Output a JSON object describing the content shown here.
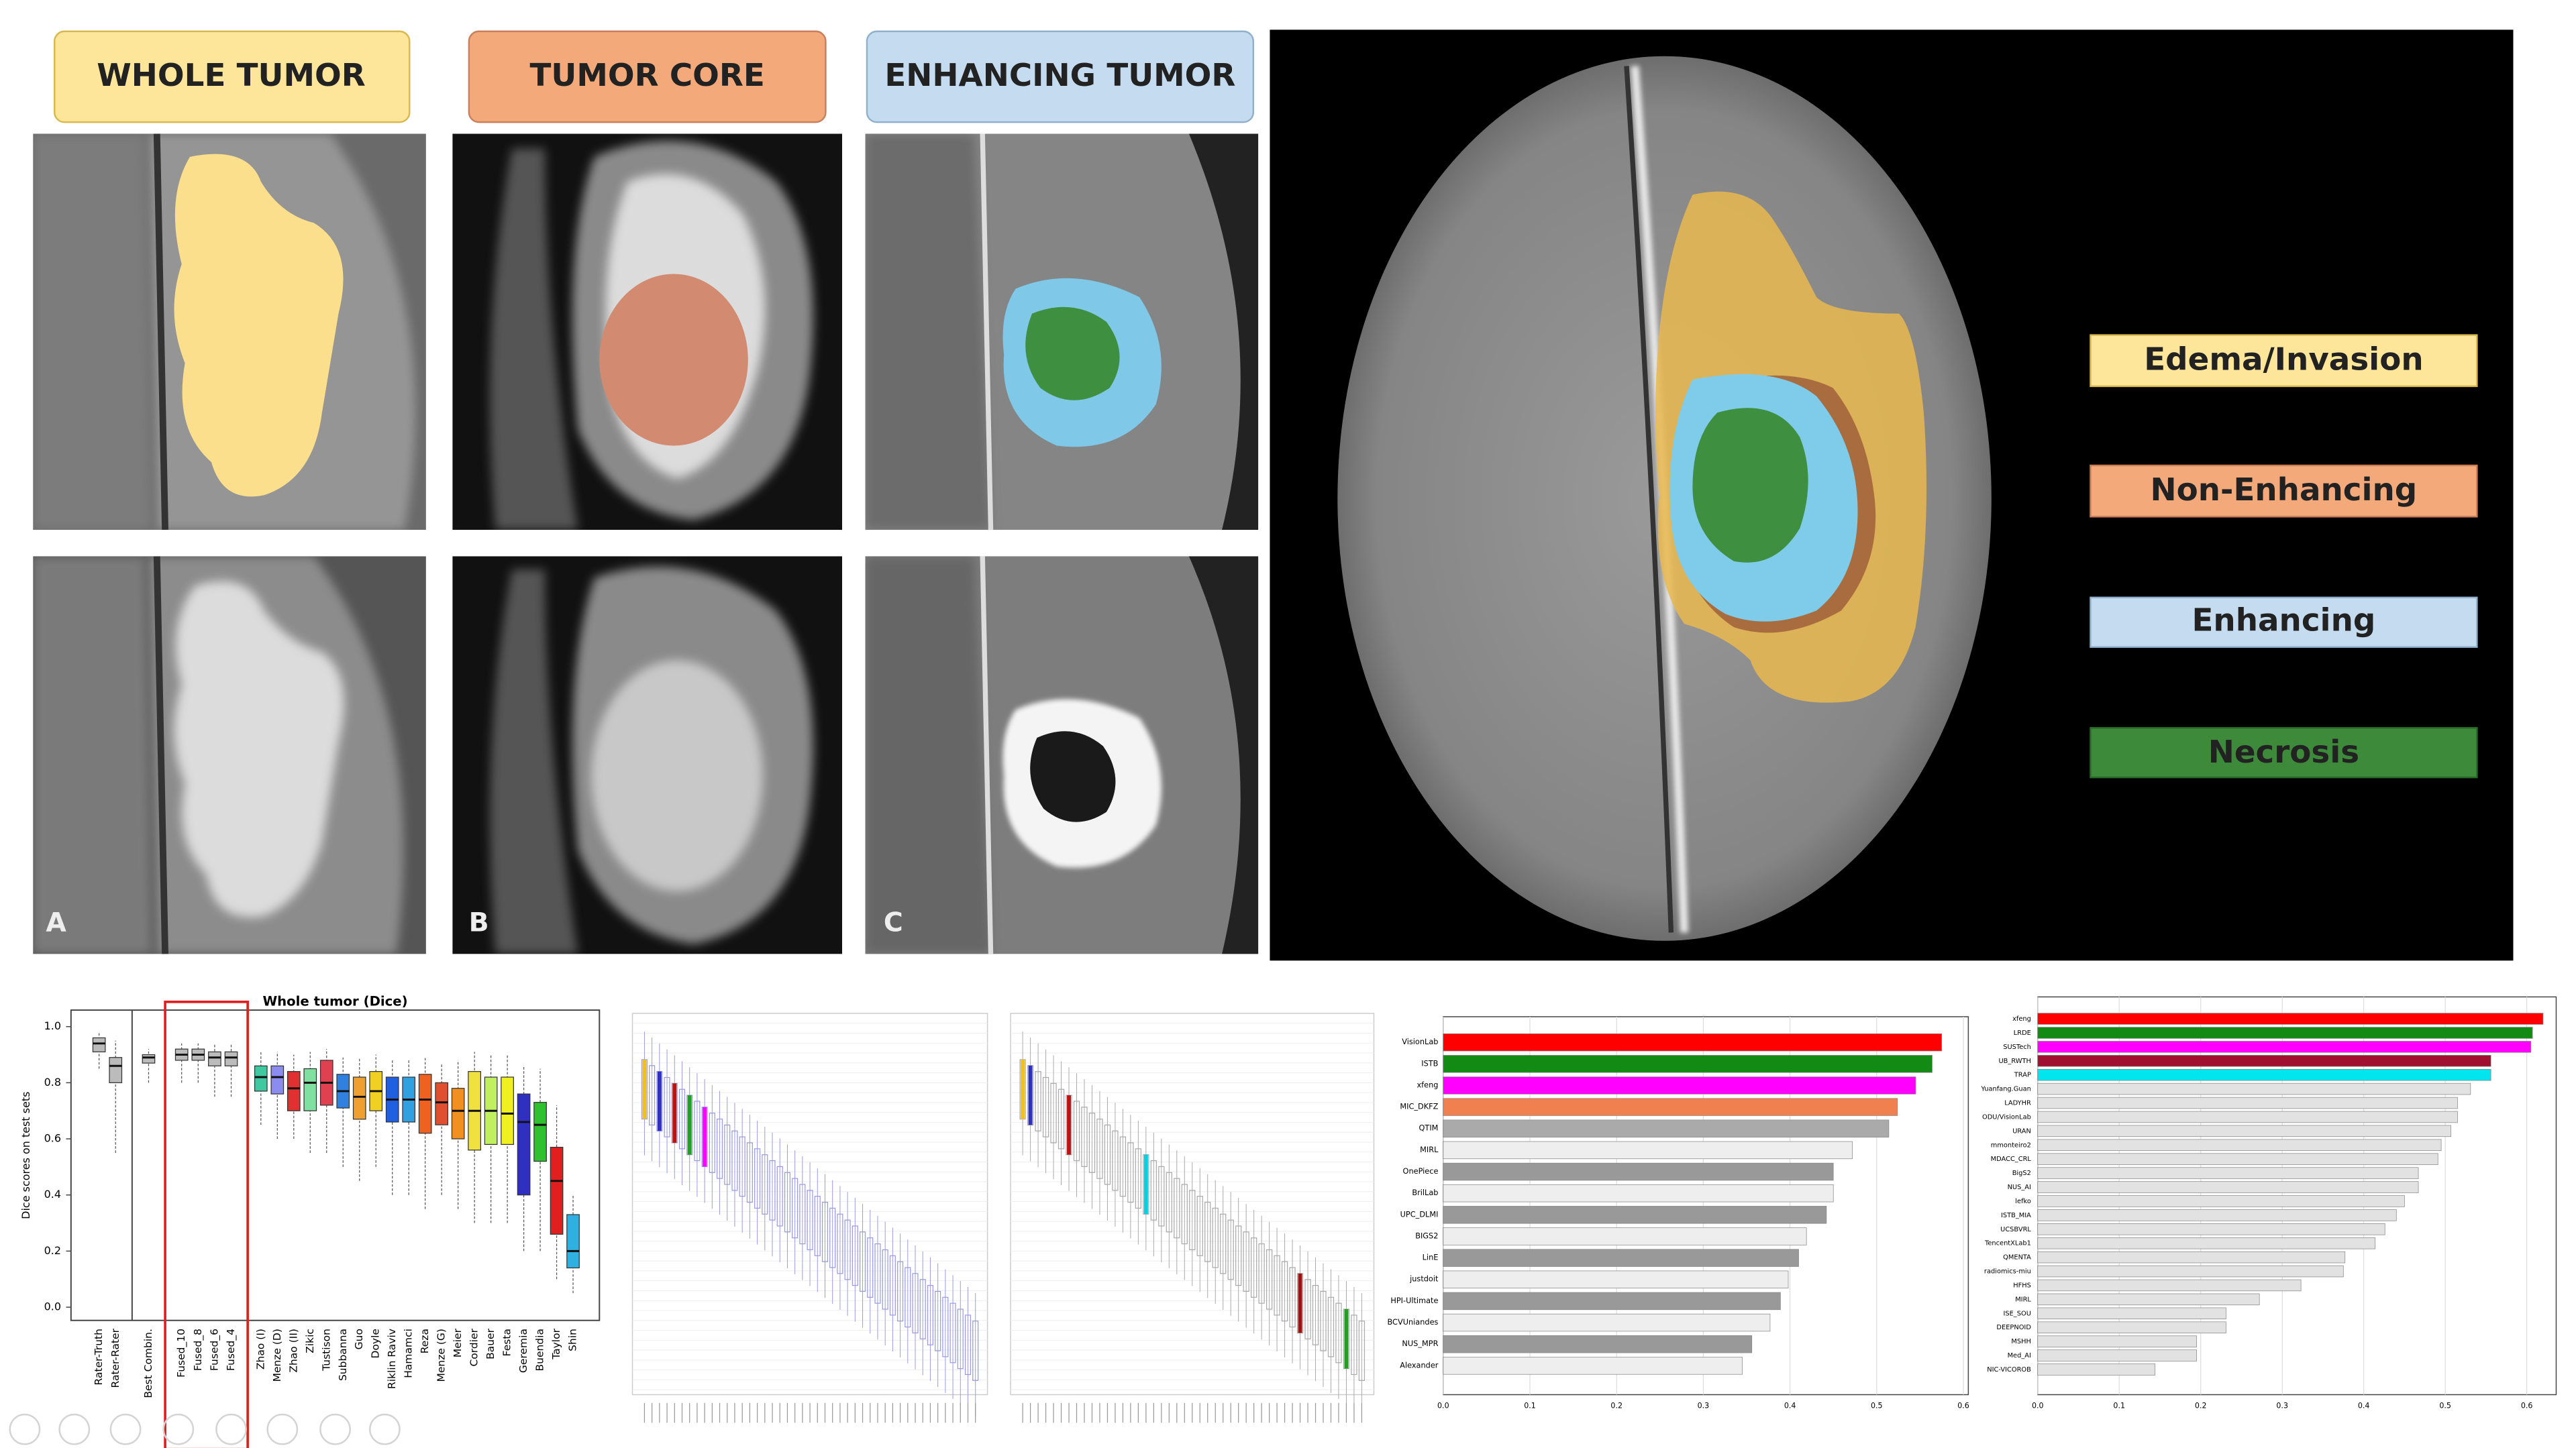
{
  "header_labels": [
    "WHOLE TUMOR",
    "TUMOR CORE",
    "ENHANCING TUMOR"
  ],
  "panel_letters": [
    "A",
    "B",
    "C"
  ],
  "legend": [
    "Edema/Invasion",
    "Non-Enhancing",
    "Enhancing",
    "Necrosis"
  ],
  "chart_data": [
    {
      "type": "box",
      "title": "Whole tumor (Dice)",
      "y_label": "Dice scores on test sets",
      "categories": [
        "Rater-Truth",
        "Rater-Rater",
        "Best Combin.",
        "Fused_10",
        "Fused_8",
        "Fused_6",
        "Fused_4",
        "Zhao (I)",
        "Menze (D)",
        "Zhao (II)",
        "Zikic",
        "Tustison",
        "Subbanna",
        "Guo",
        "Doyle",
        "Riklin Raviv",
        "Hamamci",
        "Reza",
        "Menze (G)",
        "Meier",
        "Cordier",
        "Bauer",
        "Festa",
        "Geremia",
        "Buendia",
        "Taylor",
        "Shin"
      ],
      "low": [
        0.85,
        0.55,
        0.8,
        0.8,
        0.8,
        0.75,
        0.75,
        0.65,
        0.6,
        0.6,
        0.55,
        0.55,
        0.5,
        0.45,
        0.5,
        0.4,
        0.4,
        0.35,
        0.4,
        0.35,
        0.3,
        0.3,
        0.3,
        0.2,
        0.2,
        0.1,
        0.05
      ],
      "q1": [
        0.91,
        0.8,
        0.87,
        0.88,
        0.88,
        0.86,
        0.86,
        0.77,
        0.76,
        0.7,
        0.7,
        0.72,
        0.71,
        0.67,
        0.7,
        0.66,
        0.66,
        0.62,
        0.65,
        0.6,
        0.56,
        0.58,
        0.58,
        0.4,
        0.52,
        0.26,
        0.14
      ],
      "median": [
        0.94,
        0.86,
        0.89,
        0.9,
        0.9,
        0.89,
        0.89,
        0.82,
        0.82,
        0.78,
        0.8,
        0.8,
        0.77,
        0.75,
        0.77,
        0.74,
        0.74,
        0.74,
        0.73,
        0.7,
        0.7,
        0.7,
        0.69,
        0.66,
        0.65,
        0.45,
        0.2
      ],
      "q3": [
        0.96,
        0.89,
        0.9,
        0.92,
        0.92,
        0.91,
        0.91,
        0.86,
        0.86,
        0.84,
        0.85,
        0.88,
        0.83,
        0.82,
        0.84,
        0.82,
        0.82,
        0.83,
        0.8,
        0.78,
        0.84,
        0.82,
        0.82,
        0.76,
        0.73,
        0.57,
        0.33
      ],
      "high": [
        0.98,
        0.95,
        0.92,
        0.94,
        0.94,
        0.94,
        0.94,
        0.91,
        0.91,
        0.9,
        0.91,
        0.92,
        0.89,
        0.89,
        0.9,
        0.88,
        0.88,
        0.89,
        0.87,
        0.88,
        0.91,
        0.9,
        0.9,
        0.86,
        0.85,
        0.72,
        0.4
      ],
      "colors": [
        "#bbbbbb",
        "#bbbbbb",
        "#bbbbbb",
        "#bbbbbb",
        "#bbbbbb",
        "#bbbbbb",
        "#bbbbbb",
        "#40c8a0",
        "#8c8cf0",
        "#e03030",
        "#80e0a0",
        "#e04050",
        "#3080e0",
        "#f0a030",
        "#f0d020",
        "#2060e0",
        "#30a0e0",
        "#f06020",
        "#e05030",
        "#f09020",
        "#f0e040",
        "#c0f060",
        "#f0f020",
        "#3030c0",
        "#30c030",
        "#e02020",
        "#30b0e0"
      ],
      "ylim": [
        0,
        1
      ],
      "yticks": [
        {
          "value": 0,
          "label": "0.0"
        },
        {
          "value": 0.2,
          "label": "0.2"
        },
        {
          "value": 0.4,
          "label": "0.4"
        },
        {
          "value": 0.6,
          "label": "0.6"
        },
        {
          "value": 0.8,
          "label": "0.8"
        },
        {
          "value": 1,
          "label": "1.0"
        }
      ]
    },
    {
      "type": "barh",
      "categories": [
        "VisionLab",
        "ISTB",
        "xfeng",
        "MIC_DKFZ",
        "QTIM",
        "MIRL",
        "OnePiece",
        "BrilLab",
        "UPC_DLMI",
        "BIGS2",
        "LinE",
        "justdoit",
        "HPI-Ultimate",
        "BCVUniandes",
        "NUS_MPR",
        "Alexander"
      ],
      "values": [
        0.575,
        0.564,
        0.545,
        0.524,
        0.514,
        0.472,
        0.45,
        0.45,
        0.442,
        0.419,
        0.41,
        0.398,
        0.389,
        0.377,
        0.356,
        0.345
      ],
      "colors": [
        "#ff0000",
        "#138a13",
        "#ff00ff",
        "#f08050",
        "#aaaaaa",
        "#eeeeee",
        "#999999",
        "#eeeeee",
        "#999999",
        "#eeeeee",
        "#999999",
        "#eeeeee",
        "#999999",
        "#eeeeee",
        "#999999",
        "#eeeeee"
      ],
      "xlim": [
        0,
        0.6
      ],
      "xticks": [
        {
          "value": 0,
          "label": "0.0"
        },
        {
          "value": 0.1,
          "label": "0.1"
        },
        {
          "value": 0.2,
          "label": "0.2"
        },
        {
          "value": 0.3,
          "label": "0.3"
        },
        {
          "value": 0.4,
          "label": "0.4"
        },
        {
          "value": 0.5,
          "label": "0.5"
        },
        {
          "value": 0.6,
          "label": "0.6"
        }
      ]
    },
    {
      "type": "barh",
      "categories": [
        "xfeng",
        "LRDE",
        "SUSTech",
        "UB_RWTH",
        "TRAP",
        "Yuanfang.Guan",
        "LADYHR",
        "ODU/VisionLab",
        "URAN",
        "mmonteiro2",
        "MDACC_CRL",
        "BigS2",
        "NUS_AI",
        "lefko",
        "ISTB_MIA",
        "UCSBVRL",
        "TencentXLab1",
        "QMENTA",
        "radiomics-miu",
        "HFHS",
        "MIRL",
        "ISE_SOU",
        "DEEPNOID",
        "MSHH",
        "Med_AI",
        "NIC-VICOROB"
      ],
      "values": [
        0.62,
        0.607,
        0.605,
        0.556,
        0.556,
        0.531,
        0.515,
        0.515,
        0.507,
        0.495,
        0.491,
        0.467,
        0.467,
        0.45,
        0.44,
        0.426,
        0.414,
        0.377,
        0.375,
        0.323,
        0.272,
        0.231,
        0.231,
        0.195,
        0.195,
        0.144
      ],
      "colors": [
        "#ff0000",
        "#138a13",
        "#ff00ff",
        "#a01030",
        "#00e5ee",
        "#e2e2e2",
        "#e2e2e2",
        "#e2e2e2",
        "#e2e2e2",
        "#e2e2e2",
        "#e2e2e2",
        "#e2e2e2",
        "#e2e2e2",
        "#e2e2e2",
        "#e2e2e2",
        "#e2e2e2",
        "#e2e2e2",
        "#e2e2e2",
        "#e2e2e2",
        "#e2e2e2",
        "#e2e2e2",
        "#e2e2e2",
        "#e2e2e2",
        "#e2e2e2",
        "#e2e2e2",
        "#e2e2e2"
      ],
      "xlim": [
        0,
        0.63
      ],
      "xticks": [
        {
          "value": 0,
          "label": "0.0"
        },
        {
          "value": 0.1,
          "label": "0.1"
        },
        {
          "value": 0.2,
          "label": "0.2"
        },
        {
          "value": 0.3,
          "label": "0.3"
        },
        {
          "value": 0.4,
          "label": "0.4"
        },
        {
          "value": 0.5,
          "label": "0.5"
        },
        {
          "value": 0.6,
          "label": "0.6"
        }
      ]
    }
  ]
}
